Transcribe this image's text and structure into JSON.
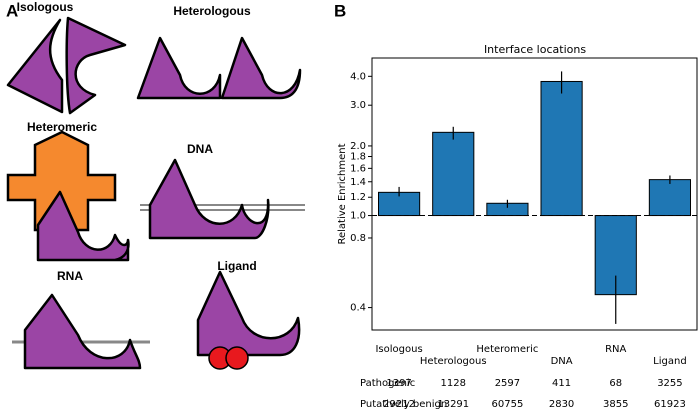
{
  "panel_labels": [
    "A",
    "B"
  ],
  "panel_a": {
    "labels": [
      "Isologous",
      "Heterologous",
      "Heteromeric",
      "DNA",
      "RNA",
      "Ligand"
    ]
  },
  "chart_data": {
    "type": "bar",
    "title": "Interface locations",
    "y_label": "Relative Enrichment",
    "log_y": true,
    "categories": [
      "Isologous",
      "Heterologous",
      "Heteromeric",
      "DNA",
      "RNA",
      "Ligand"
    ],
    "values": [
      1.26,
      2.29,
      1.13,
      3.8,
      0.455,
      1.43
    ],
    "ci": [
      [
        1.21,
        1.33
      ],
      [
        2.13,
        2.42
      ],
      [
        1.08,
        1.17
      ],
      [
        3.37,
        4.2
      ],
      [
        0.34,
        0.55
      ],
      [
        1.37,
        1.49
      ]
    ],
    "color": "#1f77b4",
    "reference_line": 1,
    "ylim": [
      0.32,
      4.8
    ],
    "yticks": [
      0.4,
      0.8,
      {
        "value": 1,
        "label": "1.0"
      },
      1.2,
      1.4,
      1.6,
      1.8,
      {
        "value": 2,
        "label": "2.0"
      },
      {
        "value": 3,
        "label": "3.0"
      },
      {
        "value": 4,
        "label": "4.0"
      }
    ],
    "table": [
      {
        "name": "Pathogenic",
        "values": [
          1397,
          1128,
          2597,
          411,
          68,
          3255
        ]
      },
      {
        "name": "Putatively benign",
        "values": [
          29212,
          13291,
          60755,
          2830,
          3855,
          61923
        ]
      }
    ]
  }
}
